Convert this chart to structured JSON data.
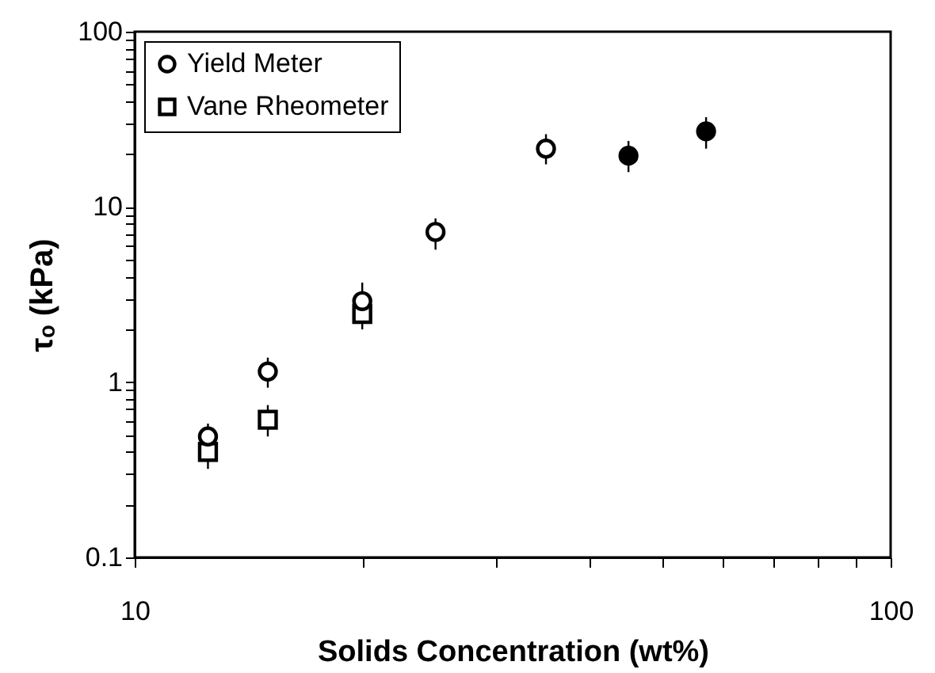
{
  "chart_data": {
    "type": "scatter",
    "xlabel": "Solids Concentration (wt%)",
    "ylabel": "τₒ (kPa)",
    "log": "xy",
    "xlim": [
      10,
      100
    ],
    "ylim": [
      0.1,
      100
    ],
    "xticks": [
      10,
      {
        "value": 20,
        "label": null
      },
      {
        "value": 30,
        "label": null
      },
      {
        "value": 40,
        "label": null
      },
      {
        "value": 50,
        "label": null
      },
      {
        "value": 60,
        "label": null
      },
      {
        "value": 70,
        "label": null
      },
      {
        "value": 80,
        "label": null
      },
      {
        "value": 90,
        "label": null
      },
      100
    ],
    "yticks": [
      0.1,
      {
        "value": 0.2,
        "label": null
      },
      {
        "value": 0.3,
        "label": null
      },
      {
        "value": 0.4,
        "label": null
      },
      {
        "value": 0.5,
        "label": null
      },
      {
        "value": 0.6,
        "label": null
      },
      {
        "value": 0.7,
        "label": null
      },
      {
        "value": 0.8,
        "label": null
      },
      {
        "value": 0.9,
        "label": null
      },
      1,
      {
        "value": 2,
        "label": null
      },
      {
        "value": 3,
        "label": null
      },
      {
        "value": 4,
        "label": null
      },
      {
        "value": 5,
        "label": null
      },
      {
        "value": 6,
        "label": null
      },
      {
        "value": 7,
        "label": null
      },
      {
        "value": 8,
        "label": null
      },
      {
        "value": 9,
        "label": null
      },
      10,
      {
        "value": 20,
        "label": null
      },
      {
        "value": 30,
        "label": null
      },
      {
        "value": 40,
        "label": null
      },
      {
        "value": 50,
        "label": null
      },
      {
        "value": 60,
        "label": null
      },
      {
        "value": 70,
        "label": null
      },
      {
        "value": 80,
        "label": null
      },
      {
        "value": 90,
        "label": null
      },
      100
    ],
    "grid": false,
    "legend": "top left",
    "series": [
      {
        "name": "Yield Meter",
        "color": "#000000",
        "marker": "circle",
        "x": [
          12.5,
          15,
          20,
          25,
          35
        ],
        "values": [
          0.49,
          1.15,
          2.9,
          7.2,
          21.5
        ],
        "errors": [
          [
            0.42,
            0.58
          ],
          [
            0.93,
            1.38
          ],
          [
            2.5,
            3.7
          ],
          [
            5.7,
            8.6
          ],
          [
            17.5,
            26
          ]
        ]
      },
      {
        "name": "Vane Rheometer",
        "color": "#000000",
        "marker": "square",
        "x": [
          12.5,
          15,
          20
        ],
        "values": [
          0.4,
          0.61,
          2.45
        ],
        "errors": [
          [
            0.32,
            0.48
          ],
          [
            0.49,
            0.74
          ],
          [
            2.0,
            2.8
          ]
        ]
      },
      {
        "color": "#000000",
        "marker": "circle",
        "x": [
          45,
          57
        ],
        "values": [
          19.6,
          27
        ],
        "errors": [
          [
            15.8,
            23.8
          ],
          [
            21.5,
            32.5
          ]
        ]
      }
    ]
  }
}
